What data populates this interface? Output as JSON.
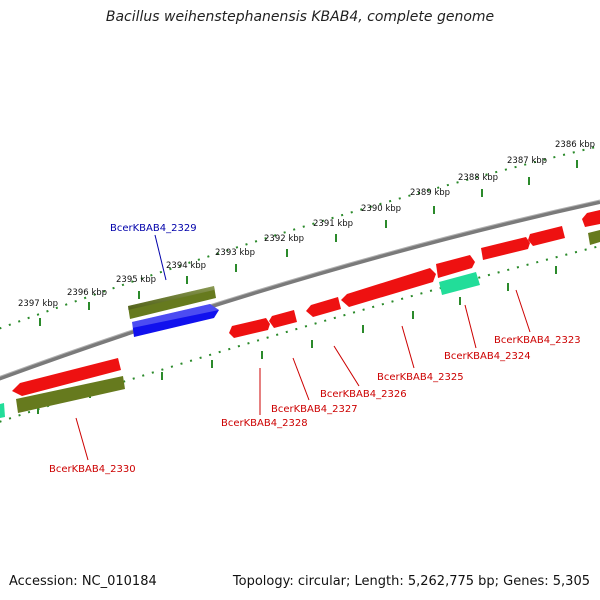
{
  "title": "Bacillus weihenstephanensis KBAB4, complete genome",
  "footer": {
    "accession_label": "Accession: NC_010184",
    "summary": "Topology: circular; Length: 5,262,775 bp; Genes: 5,305"
  },
  "ticks": [
    {
      "label": "2386 kbp",
      "pos_kbp": 2386
    },
    {
      "label": "2387 kbp",
      "pos_kbp": 2387
    },
    {
      "label": "2388 kbp",
      "pos_kbp": 2388
    },
    {
      "label": "2389 kbp",
      "pos_kbp": 2389
    },
    {
      "label": "2390 kbp",
      "pos_kbp": 2390
    },
    {
      "label": "2391 kbp",
      "pos_kbp": 2391
    },
    {
      "label": "2392 kbp",
      "pos_kbp": 2392
    },
    {
      "label": "2393 kbp",
      "pos_kbp": 2393
    },
    {
      "label": "2394 kbp",
      "pos_kbp": 2394
    },
    {
      "label": "2395 kbp",
      "pos_kbp": 2395
    },
    {
      "label": "2396 kbp",
      "pos_kbp": 2396
    },
    {
      "label": "2397 kbp",
      "pos_kbp": 2397
    }
  ],
  "genes": [
    {
      "label": "BcerKBAB4_2323",
      "color": "#cc0000"
    },
    {
      "label": "BcerKBAB4_2324",
      "color": "#cc0000"
    },
    {
      "label": "BcerKBAB4_2325",
      "color": "#cc0000"
    },
    {
      "label": "BcerKBAB4_2326",
      "color": "#cc0000"
    },
    {
      "label": "BcerKBAB4_2327",
      "color": "#cc0000"
    },
    {
      "label": "BcerKBAB4_2328",
      "color": "#cc0000"
    },
    {
      "label": "BcerKBAB4_2329",
      "color": "#0000aa"
    },
    {
      "label": "BcerKBAB4_2330",
      "color": "#cc0000"
    }
  ],
  "colors": {
    "cds_red": "#ee1111",
    "cds_blue": "#1111ee",
    "gene_olive": "#667a1e",
    "rna_teal": "#22dd99",
    "backbone": "#888888",
    "dots": "#2b8a2b"
  }
}
